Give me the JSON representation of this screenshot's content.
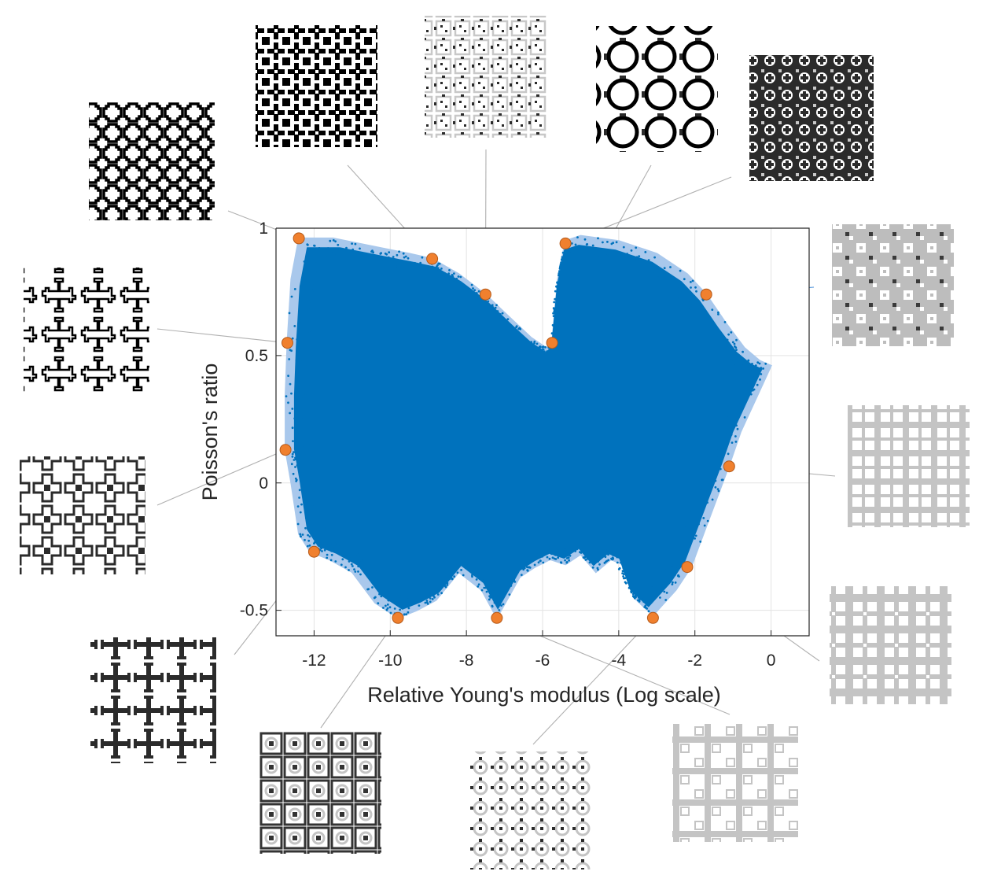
{
  "chart_data": {
    "type": "scatter",
    "title": "",
    "xlabel": "Relative Young's modulus (Log scale)",
    "ylabel": "Poisson's ratio",
    "xlim": [
      -13,
      1
    ],
    "ylim": [
      -0.6,
      1
    ],
    "x_ticks": [
      -12,
      -10,
      -8,
      -6,
      -4,
      -2,
      0
    ],
    "y_ticks": [
      -0.5,
      0,
      0.5,
      1
    ],
    "x_tick_labels": [
      "-12",
      "-10",
      "-8",
      "-6",
      "-4",
      "-2",
      "0"
    ],
    "y_tick_labels": [
      "-0.5",
      "0",
      "0.5",
      "1"
    ],
    "grid": true,
    "colors": {
      "cloud": "#0072BD",
      "hull": "#A9C8EC",
      "highlight": "#F0802E",
      "highlight_edge": "#B55A1A",
      "leader": "#B0B0B0",
      "leader_accent": "#4A90D9"
    },
    "hull_boundary": [
      [
        -12.4,
        0.96
      ],
      [
        -11.5,
        0.96
      ],
      [
        -10.5,
        0.93
      ],
      [
        -9.5,
        0.9
      ],
      [
        -8.9,
        0.88
      ],
      [
        -8.2,
        0.82
      ],
      [
        -7.5,
        0.74
      ],
      [
        -6.8,
        0.64
      ],
      [
        -6.3,
        0.57
      ],
      [
        -5.9,
        0.53
      ],
      [
        -5.75,
        0.55
      ],
      [
        -5.6,
        0.8
      ],
      [
        -5.4,
        0.95
      ],
      [
        -5.0,
        0.97
      ],
      [
        -4.0,
        0.95
      ],
      [
        -3.0,
        0.9
      ],
      [
        -2.2,
        0.82
      ],
      [
        -1.7,
        0.74
      ],
      [
        -1.2,
        0.63
      ],
      [
        -0.7,
        0.53
      ],
      [
        -0.3,
        0.48
      ],
      [
        0.0,
        0.46
      ],
      [
        -0.4,
        0.33
      ],
      [
        -0.8,
        0.2
      ],
      [
        -1.1,
        0.07
      ],
      [
        -1.4,
        -0.05
      ],
      [
        -1.7,
        -0.17
      ],
      [
        -2.1,
        -0.33
      ],
      [
        -2.5,
        -0.42
      ],
      [
        -3.1,
        -0.52
      ],
      [
        -3.6,
        -0.45
      ],
      [
        -3.9,
        -0.32
      ],
      [
        -4.2,
        -0.3
      ],
      [
        -4.6,
        -0.35
      ],
      [
        -5.0,
        -0.28
      ],
      [
        -5.4,
        -0.32
      ],
      [
        -5.8,
        -0.3
      ],
      [
        -6.2,
        -0.33
      ],
      [
        -6.6,
        -0.37
      ],
      [
        -7.2,
        -0.53
      ],
      [
        -7.6,
        -0.42
      ],
      [
        -8.2,
        -0.35
      ],
      [
        -8.8,
        -0.46
      ],
      [
        -9.3,
        -0.5
      ],
      [
        -9.8,
        -0.53
      ],
      [
        -10.4,
        -0.47
      ],
      [
        -11.0,
        -0.35
      ],
      [
        -11.6,
        -0.3
      ],
      [
        -12.1,
        -0.27
      ],
      [
        -12.4,
        -0.2
      ],
      [
        -12.6,
        0.0
      ],
      [
        -12.75,
        0.13
      ],
      [
        -12.75,
        0.35
      ],
      [
        -12.7,
        0.55
      ],
      [
        -12.6,
        0.8
      ]
    ],
    "highlighted_points": [
      {
        "x": -12.4,
        "y": 0.96
      },
      {
        "x": -8.9,
        "y": 0.88
      },
      {
        "x": -7.5,
        "y": 0.74
      },
      {
        "x": -5.4,
        "y": 0.94
      },
      {
        "x": -5.75,
        "y": 0.55
      },
      {
        "x": -1.7,
        "y": 0.74
      },
      {
        "x": -12.7,
        "y": 0.55
      },
      {
        "x": -12.75,
        "y": 0.13
      },
      {
        "x": -1.1,
        "y": 0.065
      },
      {
        "x": -12.0,
        "y": -0.27
      },
      {
        "x": -2.2,
        "y": -0.33
      },
      {
        "x": -9.8,
        "y": -0.53
      },
      {
        "x": -7.2,
        "y": -0.53
      },
      {
        "x": -3.1,
        "y": -0.53
      }
    ]
  },
  "insets": [
    {
      "name": "inset-ring-lattice-dark",
      "pattern": "ring",
      "color": "#2b2b2b",
      "point": 0
    },
    {
      "name": "inset-star-lattice-dark",
      "pattern": "star",
      "color": "#2b2b2b",
      "point": 1
    },
    {
      "name": "inset-fractal-lattice-mixed",
      "pattern": "fractal",
      "color": "#9a9a9a",
      "point": 2
    },
    {
      "name": "inset-circle-lattice-light",
      "pattern": "circle",
      "color": "#c2c2c2",
      "point": 4
    },
    {
      "name": "inset-dense-lattice-dark",
      "pattern": "dense",
      "color": "#2b2b2b",
      "point": 3
    },
    {
      "name": "inset-block-lattice-gray",
      "pattern": "block",
      "color": "#bdbdbd",
      "point": 5
    },
    {
      "name": "inset-cross-lattice-dark",
      "pattern": "cross",
      "color": "#2b2b2b",
      "point": 6
    },
    {
      "name": "inset-grid-lattice-light",
      "pattern": "grid",
      "color": "#c4c4c4",
      "point": 8
    },
    {
      "name": "inset-hooked-cross-lattice-dark",
      "pattern": "hooked",
      "color": "#2b2b2b",
      "point": 7
    },
    {
      "name": "inset-window-lattice-light",
      "pattern": "window",
      "color": "#c4c4c4",
      "point": 10
    },
    {
      "name": "inset-thick-cross-lattice-dark",
      "pattern": "thick",
      "color": "#2b2b2b",
      "point": 9
    },
    {
      "name": "inset-cross-window-lattice-light",
      "pattern": "crosswin",
      "color": "#c4c4c4",
      "point": 12
    },
    {
      "name": "inset-mesh-lattice-mixed",
      "pattern": "mesh",
      "color": "#a8a8a8",
      "point": 13
    },
    {
      "name": "inset-checker-lattice-dark",
      "pattern": "checker",
      "color": "#333333",
      "point": 11
    }
  ]
}
